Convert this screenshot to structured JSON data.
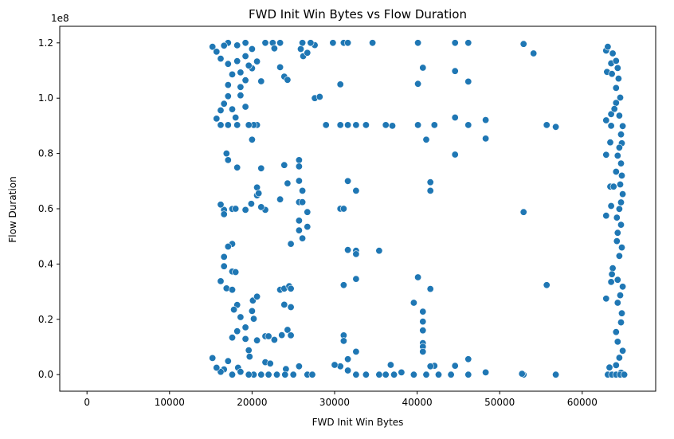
{
  "chart_data": {
    "type": "scatter",
    "title": "FWD Init Win Bytes vs Flow Duration",
    "xlabel": "FWD Init Win Bytes",
    "ylabel": "Flow Duration",
    "y_offset_label": "1e8",
    "xlim": [
      -3300,
      68900
    ],
    "ylim": [
      -6000000,
      126000000
    ],
    "xticks": [
      0,
      10000,
      20000,
      30000,
      40000,
      50000,
      60000
    ],
    "xtick_labels": [
      "0",
      "10000",
      "20000",
      "30000",
      "40000",
      "50000",
      "60000"
    ],
    "yticks": [
      0,
      20000000,
      40000000,
      60000000,
      80000000,
      100000000,
      120000000
    ],
    "ytick_labels": [
      "0.0",
      "0.2",
      "0.4",
      "0.6",
      "0.8",
      "1.0",
      "1.2"
    ],
    "grid": false,
    "legend": "none",
    "marker_color": "#1f77b4",
    "points": [
      [
        28960,
        90300000
      ],
      [
        30700,
        90300000
      ],
      [
        31600,
        90300000
      ],
      [
        32600,
        90300000
      ],
      [
        33800,
        90300000
      ],
      [
        36200,
        90300000
      ],
      [
        37000,
        90000000
      ],
      [
        40100,
        90300000
      ],
      [
        42100,
        90300000
      ],
      [
        46200,
        90300000
      ],
      [
        48300,
        92100000
      ],
      [
        55700,
        90300000
      ],
      [
        56800,
        89600000
      ],
      [
        44600,
        93000000
      ],
      [
        34600,
        120000000
      ],
      [
        40100,
        120000000
      ],
      [
        44600,
        120000000
      ],
      [
        46200,
        120000000
      ],
      [
        52900,
        119600000
      ],
      [
        54100,
        116200000
      ],
      [
        40700,
        111000000
      ],
      [
        44600,
        109800000
      ],
      [
        40100,
        105200000
      ],
      [
        46200,
        106000000
      ],
      [
        30700,
        105000000
      ],
      [
        48300,
        85400000
      ],
      [
        41100,
        85000000
      ],
      [
        44600,
        79600000
      ],
      [
        41600,
        69600000
      ],
      [
        41600,
        66500000
      ],
      [
        31600,
        70000000
      ],
      [
        32600,
        66500000
      ],
      [
        30700,
        60000000
      ],
      [
        31100,
        60000000
      ],
      [
        52900,
        58800000
      ],
      [
        35400,
        44800000
      ],
      [
        32600,
        44800000
      ],
      [
        32600,
        43600000
      ],
      [
        31600,
        45100000
      ],
      [
        40100,
        35200000
      ],
      [
        32600,
        34600000
      ],
      [
        31100,
        32400000
      ],
      [
        41600,
        31000000
      ],
      [
        55700,
        32400000
      ],
      [
        39600,
        26000000
      ],
      [
        40700,
        22800000
      ],
      [
        40700,
        19200000
      ],
      [
        40700,
        16000000
      ],
      [
        40700,
        11400000
      ],
      [
        40700,
        10100000
      ],
      [
        40700,
        8300000
      ],
      [
        31100,
        14200000
      ],
      [
        31100,
        12200000
      ],
      [
        32600,
        8300000
      ],
      [
        36800,
        3500000
      ],
      [
        38100,
        800000
      ],
      [
        46200,
        5600000
      ],
      [
        42100,
        3200000
      ],
      [
        44600,
        3200000
      ],
      [
        44100,
        0
      ],
      [
        46200,
        0
      ],
      [
        48300,
        800000
      ],
      [
        52900,
        0
      ],
      [
        52700,
        300000
      ],
      [
        56800,
        0
      ],
      [
        36200,
        0
      ],
      [
        39600,
        0
      ],
      [
        42600,
        0
      ],
      [
        35400,
        0
      ],
      [
        31600,
        5600000
      ],
      [
        30700,
        3000000
      ],
      [
        31600,
        1500000
      ],
      [
        30000,
        3500000
      ],
      [
        32600,
        0
      ],
      [
        33800,
        0
      ],
      [
        37200,
        0
      ],
      [
        41100,
        0
      ],
      [
        41600,
        3000000
      ],
      [
        20000,
        85000000
      ],
      [
        20600,
        90300000
      ],
      [
        20200,
        90300000
      ],
      [
        21100,
        74600000
      ],
      [
        18200,
        74900000
      ],
      [
        17100,
        77600000
      ],
      [
        16900,
        80000000
      ],
      [
        23900,
        75800000
      ],
      [
        24300,
        69200000
      ],
      [
        25700,
        77600000
      ],
      [
        25700,
        75300000
      ],
      [
        25700,
        70100000
      ],
      [
        26100,
        66500000
      ],
      [
        25700,
        62400000
      ],
      [
        26100,
        62400000
      ],
      [
        26700,
        58800000
      ],
      [
        25700,
        55700000
      ],
      [
        25700,
        52200000
      ],
      [
        26100,
        49300000
      ],
      [
        26700,
        53500000
      ],
      [
        24700,
        47300000
      ],
      [
        23400,
        63400000
      ],
      [
        21600,
        59600000
      ],
      [
        21100,
        60600000
      ],
      [
        20600,
        64800000
      ],
      [
        20600,
        67700000
      ],
      [
        20800,
        65600000
      ],
      [
        19900,
        61800000
      ],
      [
        19200,
        59600000
      ],
      [
        17600,
        59900000
      ],
      [
        18000,
        60000000
      ],
      [
        16600,
        59600000
      ],
      [
        16200,
        61500000
      ],
      [
        16600,
        58000000
      ],
      [
        17600,
        47300000
      ],
      [
        17100,
        46300000
      ],
      [
        16600,
        42600000
      ],
      [
        16600,
        39200000
      ],
      [
        17600,
        37300000
      ],
      [
        18000,
        37100000
      ],
      [
        16200,
        33800000
      ],
      [
        16900,
        31200000
      ],
      [
        17600,
        30700000
      ],
      [
        18200,
        25200000
      ],
      [
        17800,
        23500000
      ],
      [
        18600,
        20800000
      ],
      [
        19200,
        17100000
      ],
      [
        18200,
        15700000
      ],
      [
        17600,
        13400000
      ],
      [
        19200,
        12900000
      ],
      [
        19600,
        8800000
      ],
      [
        20600,
        12400000
      ],
      [
        20200,
        20200000
      ],
      [
        20000,
        23000000
      ],
      [
        20100,
        26800000
      ],
      [
        20600,
        28200000
      ],
      [
        21600,
        13900000
      ],
      [
        22000,
        13900000
      ],
      [
        23400,
        30700000
      ],
      [
        23900,
        31100000
      ],
      [
        23900,
        25300000
      ],
      [
        24700,
        24400000
      ],
      [
        24300,
        16200000
      ],
      [
        24700,
        14200000
      ],
      [
        23600,
        14300000
      ],
      [
        22700,
        12600000
      ],
      [
        24500,
        32000000
      ],
      [
        24700,
        31100000
      ],
      [
        19700,
        6500000
      ],
      [
        16600,
        1900000
      ],
      [
        17100,
        4900000
      ],
      [
        18300,
        2500000
      ],
      [
        21600,
        4500000
      ],
      [
        24100,
        2000000
      ],
      [
        25700,
        3000000
      ],
      [
        22200,
        4000000
      ],
      [
        20200,
        0
      ],
      [
        21100,
        0
      ],
      [
        22000,
        0
      ],
      [
        23000,
        0
      ],
      [
        24000,
        0
      ],
      [
        25000,
        0
      ],
      [
        26700,
        0
      ],
      [
        27300,
        0
      ],
      [
        16200,
        1000000
      ],
      [
        17600,
        0
      ],
      [
        18600,
        1000000
      ],
      [
        19600,
        0
      ],
      [
        15700,
        2500000
      ],
      [
        15200,
        6000000
      ],
      [
        17100,
        112400000
      ],
      [
        17600,
        108600000
      ],
      [
        17100,
        104800000
      ],
      [
        18600,
        101000000
      ],
      [
        19200,
        106500000
      ],
      [
        19200,
        96900000
      ],
      [
        18000,
        93000000
      ],
      [
        18200,
        90300000
      ],
      [
        19600,
        90300000
      ],
      [
        16200,
        90300000
      ],
      [
        17100,
        90300000
      ],
      [
        15700,
        92600000
      ],
      [
        16200,
        95600000
      ],
      [
        16600,
        98000000
      ],
      [
        18600,
        109300000
      ],
      [
        18200,
        113400000
      ],
      [
        19200,
        115200000
      ],
      [
        19200,
        120000000
      ],
      [
        20000,
        117800000
      ],
      [
        20600,
        113300000
      ],
      [
        21600,
        120000000
      ],
      [
        22500,
        120000000
      ],
      [
        22700,
        118000000
      ],
      [
        23400,
        120000000
      ],
      [
        23900,
        107800000
      ],
      [
        24300,
        106600000
      ],
      [
        23400,
        111200000
      ],
      [
        25900,
        117800000
      ],
      [
        26200,
        115200000
      ],
      [
        26700,
        116400000
      ],
      [
        27600,
        119200000
      ],
      [
        26100,
        120000000
      ],
      [
        27100,
        120000000
      ],
      [
        29800,
        120000000
      ],
      [
        31100,
        120000000
      ],
      [
        31600,
        120000000
      ],
      [
        17100,
        120000000
      ],
      [
        18200,
        119100000
      ],
      [
        16600,
        119000000
      ],
      [
        15200,
        118600000
      ],
      [
        15700,
        116800000
      ],
      [
        16200,
        114300000
      ],
      [
        20000,
        110800000
      ],
      [
        21100,
        106100000
      ],
      [
        19600,
        111800000
      ],
      [
        18600,
        104000000
      ],
      [
        17600,
        96000000
      ],
      [
        17100,
        100700000
      ],
      [
        27600,
        100000000
      ],
      [
        28200,
        100500000
      ],
      [
        62900,
        27500000
      ],
      [
        63500,
        33500000
      ],
      [
        62900,
        57500000
      ],
      [
        63500,
        61000000
      ],
      [
        63400,
        68000000
      ],
      [
        63800,
        68000000
      ],
      [
        62900,
        79500000
      ],
      [
        63400,
        84000000
      ],
      [
        62900,
        92000000
      ],
      [
        63500,
        90000000
      ],
      [
        63500,
        94200000
      ],
      [
        63000,
        109500000
      ],
      [
        63600,
        108800000
      ],
      [
        63500,
        112600000
      ],
      [
        62900,
        117200000
      ],
      [
        63100,
        118600000
      ],
      [
        63700,
        116200000
      ],
      [
        64100,
        113500000
      ],
      [
        64300,
        110900000
      ],
      [
        64400,
        107100000
      ],
      [
        64100,
        103700000
      ],
      [
        64600,
        100200000
      ],
      [
        64100,
        98300000
      ],
      [
        63900,
        96100000
      ],
      [
        64500,
        93700000
      ],
      [
        64900,
        89900000
      ],
      [
        64700,
        86900000
      ],
      [
        64800,
        83700000
      ],
      [
        64500,
        82100000
      ],
      [
        64300,
        79200000
      ],
      [
        64700,
        76400000
      ],
      [
        64100,
        73400000
      ],
      [
        64800,
        72000000
      ],
      [
        64600,
        68800000
      ],
      [
        64900,
        65300000
      ],
      [
        64700,
        62300000
      ],
      [
        64500,
        59900000
      ],
      [
        64200,
        56800000
      ],
      [
        64700,
        54200000
      ],
      [
        64300,
        51300000
      ],
      [
        64200,
        48300000
      ],
      [
        64800,
        46000000
      ],
      [
        64500,
        42900000
      ],
      [
        63700,
        38500000
      ],
      [
        63600,
        36300000
      ],
      [
        64300,
        34300000
      ],
      [
        64900,
        31800000
      ],
      [
        64600,
        28700000
      ],
      [
        64300,
        26000000
      ],
      [
        64800,
        22200000
      ],
      [
        64700,
        18900000
      ],
      [
        64100,
        15400000
      ],
      [
        64300,
        11900000
      ],
      [
        64900,
        8600000
      ],
      [
        64500,
        6100000
      ],
      [
        64100,
        3400000
      ],
      [
        64700,
        700000
      ],
      [
        63100,
        0
      ],
      [
        63600,
        0
      ],
      [
        64100,
        0
      ],
      [
        64600,
        0
      ],
      [
        65100,
        0
      ],
      [
        63300,
        2600000
      ]
    ]
  }
}
